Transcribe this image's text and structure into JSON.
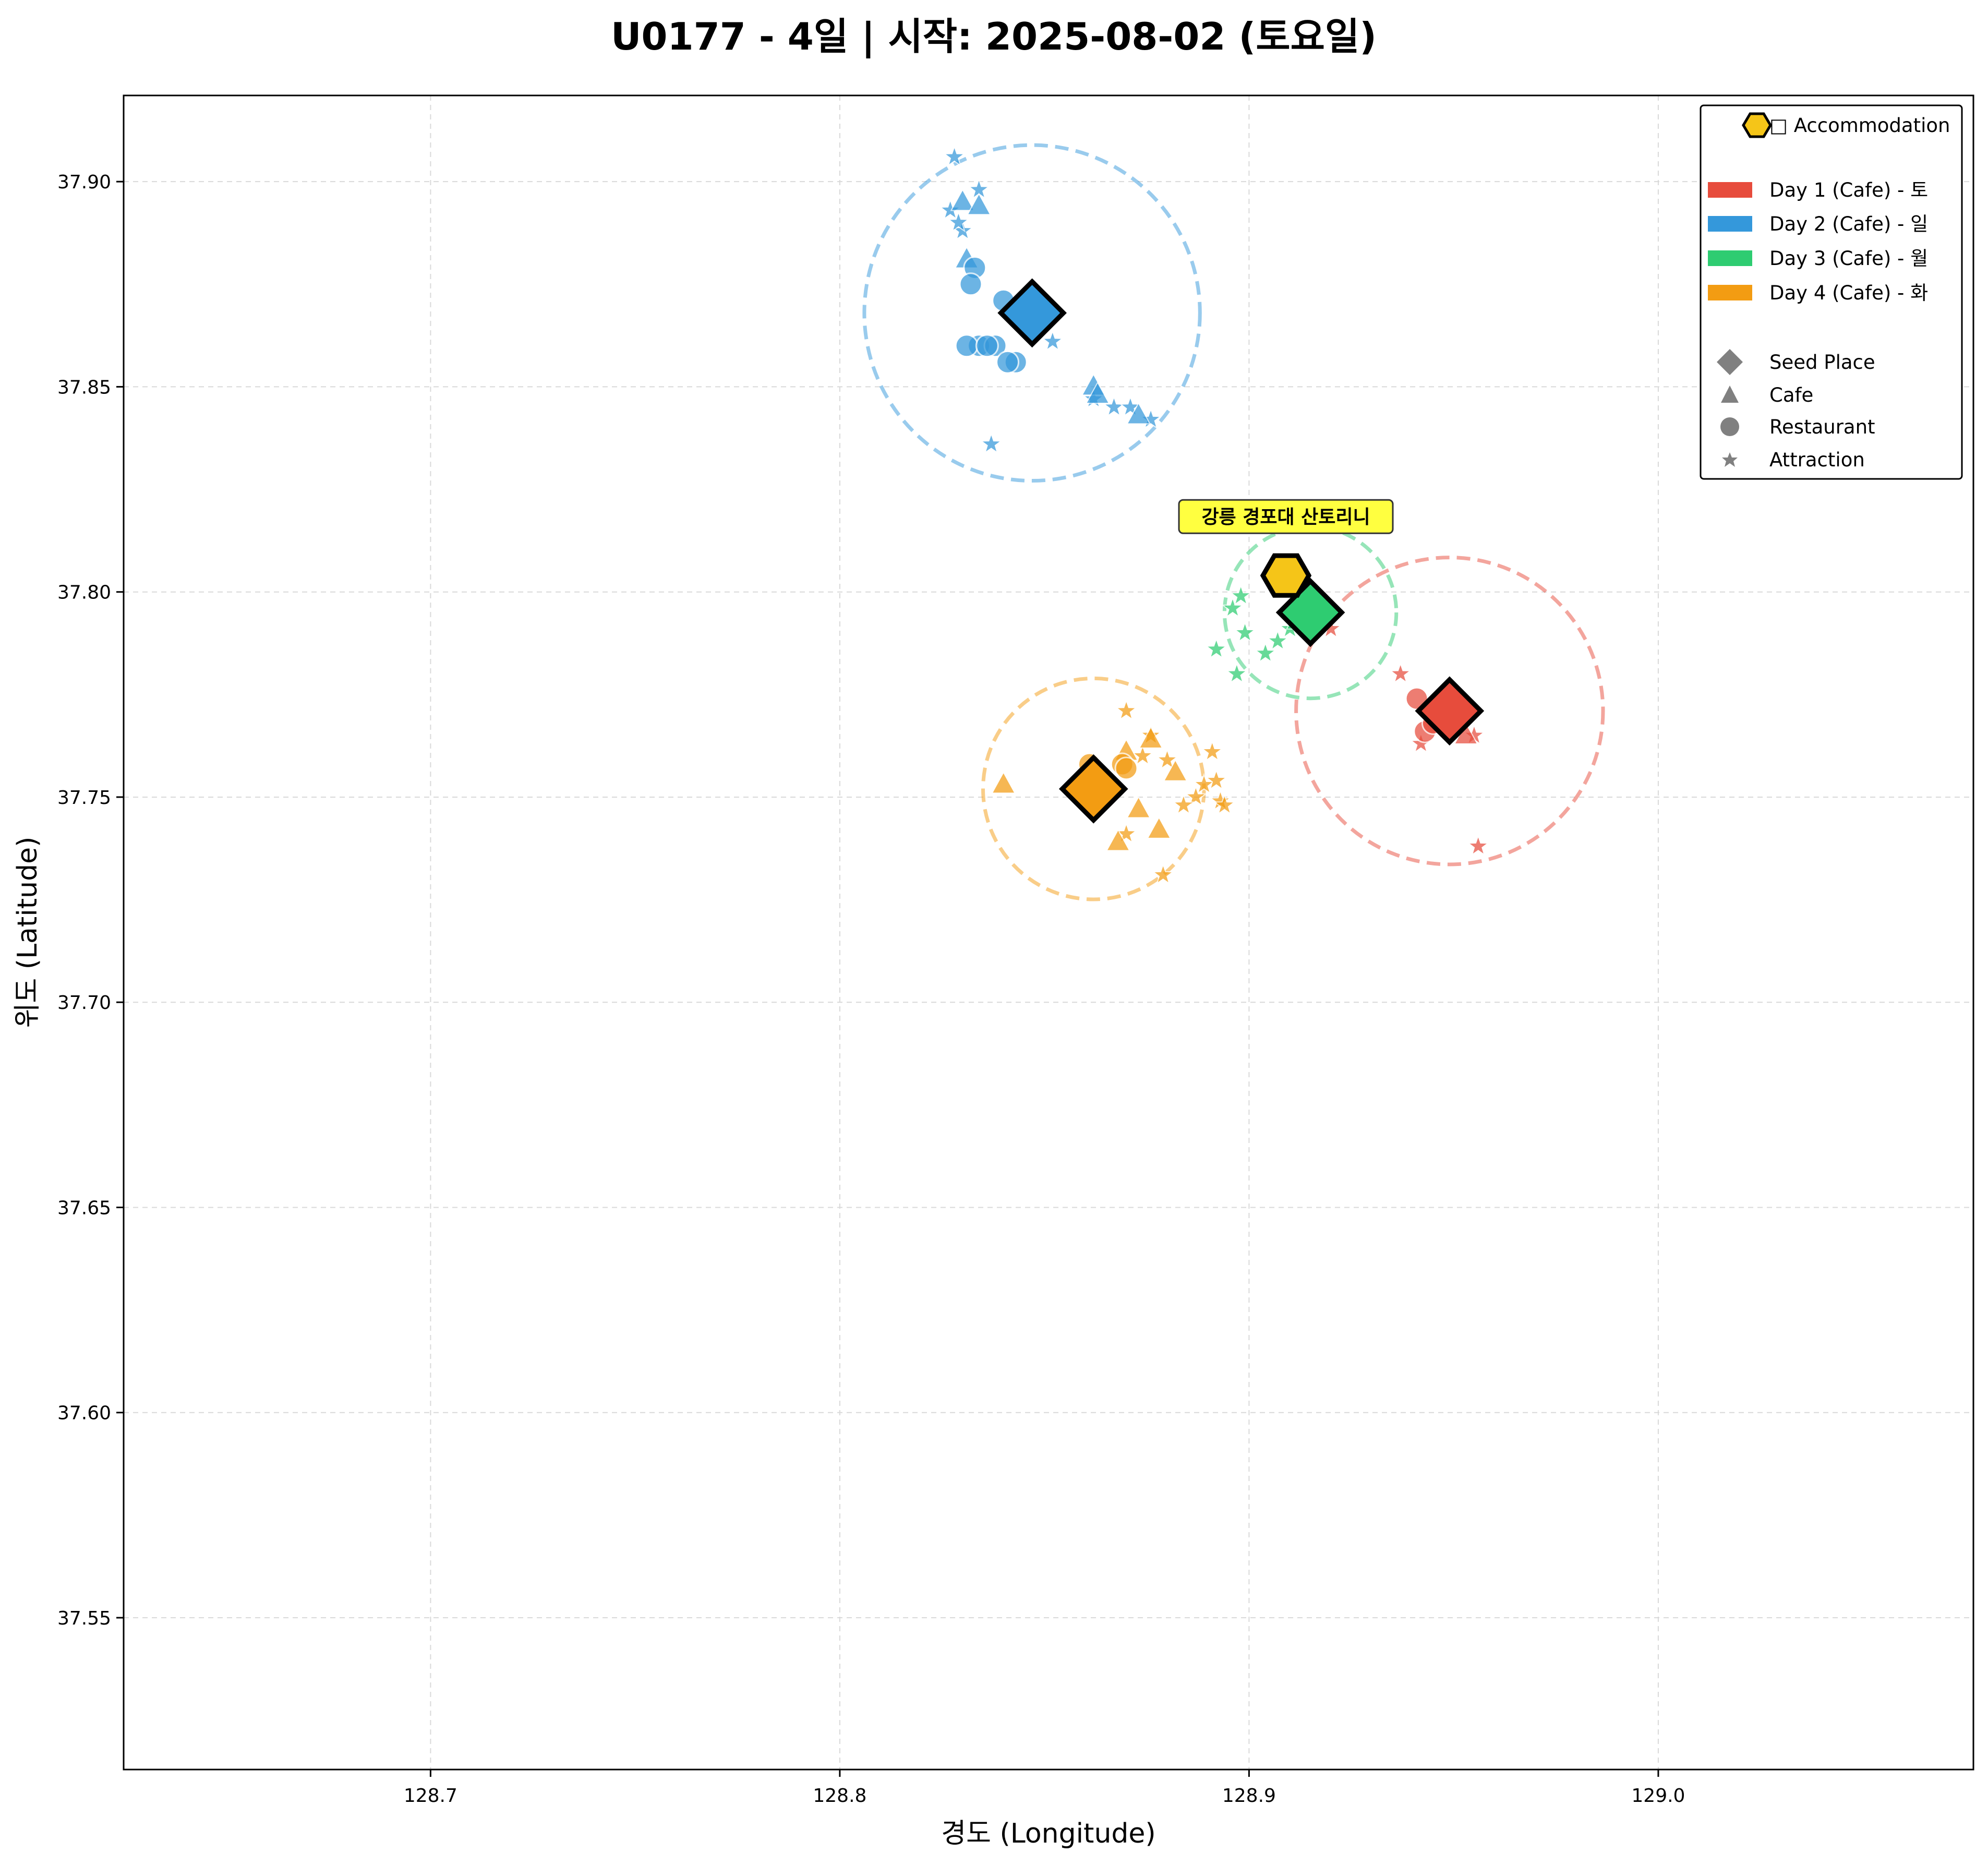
{
  "chart_data": {
    "type": "scatter",
    "title": "U0177 - 4일 | 시작: 2025-08-02 (토요일)",
    "xlabel": "경도 (Longitude)",
    "ylabel": "위도 (Latitude)",
    "xlim": [
      128.625,
      129.077
    ],
    "ylim": [
      37.513,
      37.921
    ],
    "xticks": [
      128.7,
      128.8,
      128.9,
      129.0
    ],
    "xtick_labels": [
      "128.7",
      "128.8",
      "128.9",
      "129.0"
    ],
    "yticks": [
      37.55,
      37.6,
      37.65,
      37.7,
      37.75,
      37.8,
      37.85,
      37.9
    ],
    "ytick_labels": [
      "37.55",
      "37.60",
      "37.65",
      "37.70",
      "37.75",
      "37.80",
      "37.85",
      "37.90"
    ],
    "grid": true,
    "legend_position": "top-right",
    "accommodation": {
      "name": "강릉 경포대 산토리니",
      "x": 128.909,
      "y": 37.804,
      "color": "#f5c518",
      "legend_label": "□ Accommodation"
    },
    "legend": {
      "days": [
        {
          "label": "Day 1 (Cafe) - 토",
          "color": "#e74c3c"
        },
        {
          "label": "Day 2 (Cafe) - 일",
          "color": "#3498db"
        },
        {
          "label": "Day 3 (Cafe) - 월",
          "color": "#2ecc71"
        },
        {
          "label": "Day 4 (Cafe) - 화",
          "color": "#f39c12"
        }
      ],
      "markers": [
        {
          "label": "Seed Place",
          "shape": "diamond"
        },
        {
          "label": "Cafe",
          "shape": "triangle"
        },
        {
          "label": "Restaurant",
          "shape": "circle"
        },
        {
          "label": "Attraction",
          "shape": "star"
        }
      ]
    },
    "series": [
      {
        "name": "Day 1 (Cafe) - 토",
        "color": "#e74c3c",
        "seed": [
          128.949,
          37.771
        ],
        "radius": 0.0375,
        "cafe": [
          [
            128.953,
            37.765
          ]
        ],
        "restaurant": [
          [
            128.941,
            37.774
          ],
          [
            128.943,
            37.766
          ],
          [
            128.945,
            37.768
          ],
          [
            128.948,
            37.772
          ]
        ],
        "attraction": [
          [
            128.937,
            37.78
          ],
          [
            128.942,
            37.763
          ],
          [
            128.955,
            37.765
          ],
          [
            128.956,
            37.738
          ],
          [
            128.92,
            37.791
          ]
        ]
      },
      {
        "name": "Day 2 (Cafe) - 일",
        "color": "#3498db",
        "seed": [
          128.847,
          37.868
        ],
        "radius": 0.041,
        "cafe": [
          [
            128.83,
            37.895
          ],
          [
            128.834,
            37.894
          ],
          [
            128.831,
            37.881
          ],
          [
            128.862,
            37.85
          ],
          [
            128.873,
            37.843
          ],
          [
            128.863,
            37.848
          ]
        ],
        "restaurant": [
          [
            128.833,
            37.879
          ],
          [
            128.832,
            37.875
          ],
          [
            128.84,
            37.871
          ],
          [
            128.834,
            37.86
          ],
          [
            128.838,
            37.86
          ],
          [
            128.831,
            37.86
          ],
          [
            128.843,
            37.856
          ],
          [
            128.841,
            37.856
          ],
          [
            128.836,
            37.86
          ]
        ],
        "attraction": [
          [
            128.828,
            37.906
          ],
          [
            128.827,
            37.893
          ],
          [
            128.834,
            37.898
          ],
          [
            128.83,
            37.888
          ],
          [
            128.852,
            37.861
          ],
          [
            128.862,
            37.847
          ],
          [
            128.867,
            37.845
          ],
          [
            128.871,
            37.845
          ],
          [
            128.876,
            37.842
          ],
          [
            128.837,
            37.836
          ],
          [
            128.829,
            37.89
          ]
        ]
      },
      {
        "name": "Day 3 (Cafe) - 월",
        "color": "#2ecc71",
        "seed": [
          128.915,
          37.795
        ],
        "radius": 0.021,
        "cafe": [
          [
            128.912,
            37.793
          ]
        ],
        "restaurant": [
          [
            128.913,
            37.796
          ]
        ],
        "attraction": [
          [
            128.896,
            37.796
          ],
          [
            128.898,
            37.799
          ],
          [
            128.899,
            37.79
          ],
          [
            128.892,
            37.786
          ],
          [
            128.904,
            37.785
          ],
          [
            128.907,
            37.788
          ],
          [
            128.91,
            37.791
          ],
          [
            128.897,
            37.78
          ]
        ]
      },
      {
        "name": "Day 4 (Cafe) - 화",
        "color": "#f39c12",
        "seed": [
          128.862,
          37.752
        ],
        "radius": 0.027,
        "cafe": [
          [
            128.84,
            37.753
          ],
          [
            128.876,
            37.764
          ],
          [
            128.882,
            37.756
          ],
          [
            128.873,
            37.747
          ],
          [
            128.878,
            37.742
          ],
          [
            128.868,
            37.739
          ],
          [
            128.87,
            37.761
          ]
        ],
        "restaurant": [
          [
            128.861,
            37.758
          ],
          [
            128.869,
            37.758
          ],
          [
            128.87,
            37.757
          ]
        ],
        "attraction": [
          [
            128.87,
            37.771
          ],
          [
            128.876,
            37.765
          ],
          [
            128.88,
            37.759
          ],
          [
            128.874,
            37.76
          ],
          [
            128.891,
            37.761
          ],
          [
            128.889,
            37.753
          ],
          [
            128.893,
            37.749
          ],
          [
            128.887,
            37.75
          ],
          [
            128.884,
            37.748
          ],
          [
            128.879,
            37.731
          ],
          [
            128.87,
            37.741
          ],
          [
            128.894,
            37.748
          ],
          [
            128.892,
            37.754
          ]
        ]
      }
    ]
  }
}
